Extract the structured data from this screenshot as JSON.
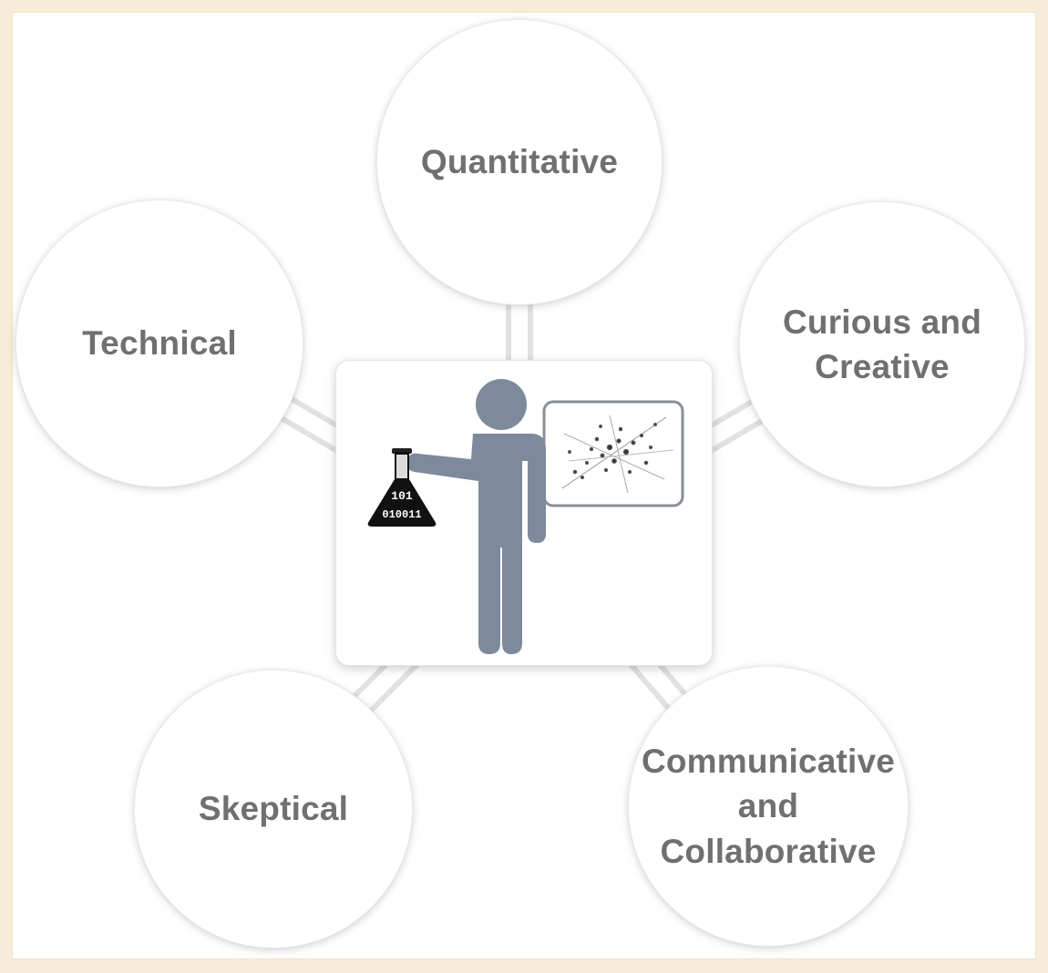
{
  "diagram": {
    "center": {
      "icon": "data-scientist-icon",
      "flask_text_line1": "101",
      "flask_text_line2": "010011"
    },
    "traits": [
      {
        "id": "quantitative",
        "label": "Quantitative"
      },
      {
        "id": "technical",
        "label": "Technical"
      },
      {
        "id": "curious",
        "label": "Curious and\nCreative"
      },
      {
        "id": "skeptical",
        "label": "Skeptical"
      },
      {
        "id": "communicative",
        "label": "Communicative\nand\nCollaborative"
      }
    ],
    "colors": {
      "figure": "#7d8a9b",
      "label": "#707070",
      "background": "#f6ecd8",
      "connector": "#e8e8e8"
    }
  }
}
